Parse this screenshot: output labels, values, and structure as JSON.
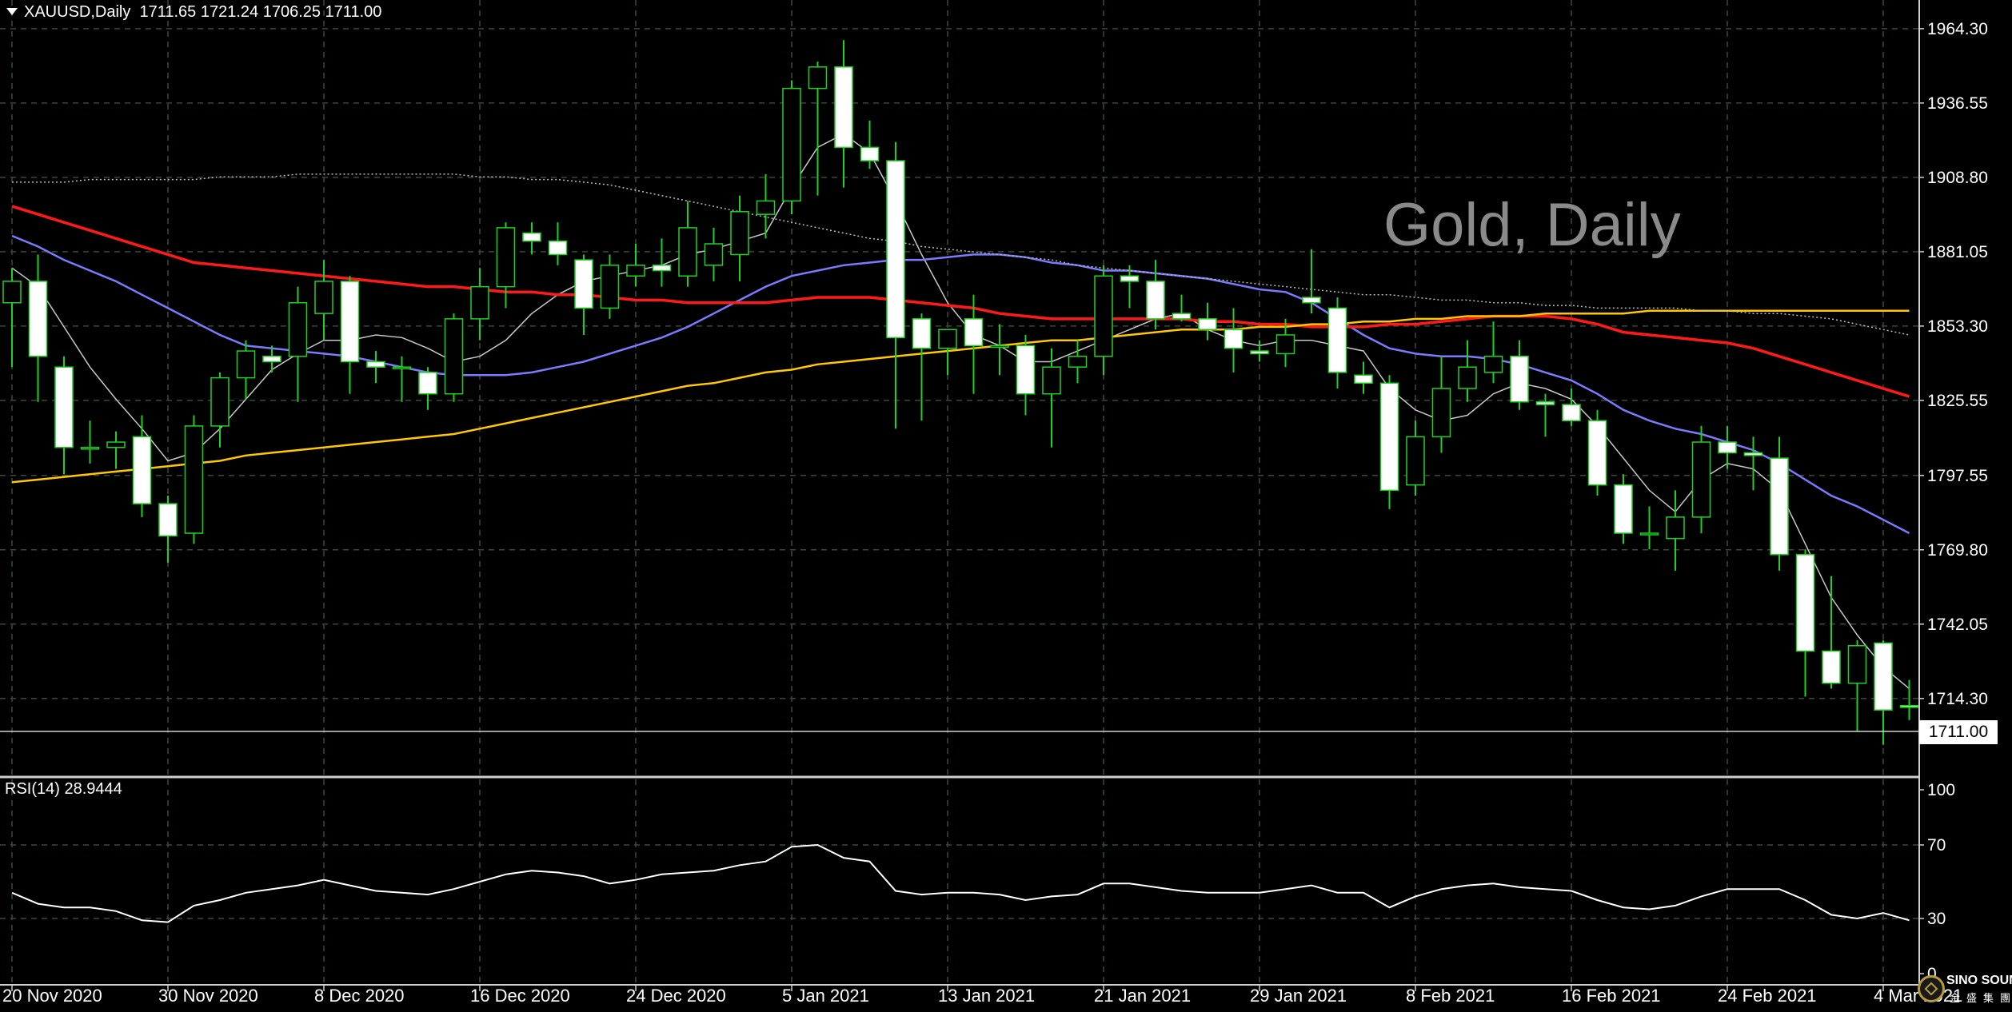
{
  "header": {
    "symbol": "XAUUSD,Daily",
    "ohlc": "1711.65 1721.24 1706.25 1711.00"
  },
  "watermark": "Gold, Daily",
  "current_price_label": "1711.00",
  "rsi_label": "RSI(14) 28.9444",
  "logo": {
    "line1": "SINO SOUND",
    "line2": "金盛集團"
  },
  "colors": {
    "background": "#000000",
    "grid": "#3a4a3a",
    "bull_body": "#000000",
    "bull_wick": "#1fd11f",
    "bear_body": "#ffffff",
    "bear_wick": "#1fd11f",
    "ma_fast": "#c8c8c8",
    "ma_blue": "#7b7bff",
    "ma_red": "#ff1a1a",
    "ma_yellow": "#ffc800",
    "ma_dotted": "#bbbbbb",
    "rsi_line": "#ffffff",
    "axis_text": "#ffffff"
  },
  "chart_data": {
    "type": "candlestick",
    "instrument": "XAUUSD",
    "timeframe": "Daily",
    "ylim": [
      1685,
      1975
    ],
    "y_ticks": [
      "1964.30",
      "1936.55",
      "1908.80",
      "1881.05",
      "1853.30",
      "1825.55",
      "1797.55",
      "1769.80",
      "1742.05",
      "1714.30"
    ],
    "x_tick_labels": [
      "20 Nov 2020",
      "30 Nov 2020",
      "8 Dec 2020",
      "16 Dec 2020",
      "24 Dec 2020",
      "5 Jan 2021",
      "13 Jan 2021",
      "21 Jan 2021",
      "29 Jan 2021",
      "8 Feb 2021",
      "16 Feb 2021",
      "24 Feb 2021",
      "4 Mar 2021"
    ],
    "x_tick_indices": [
      0,
      6,
      12,
      18,
      24,
      30,
      36,
      42,
      48,
      54,
      60,
      66,
      72
    ],
    "candles": [
      [
        1862,
        1875,
        1838,
        1870
      ],
      [
        1870,
        1880,
        1825,
        1842
      ],
      [
        1838,
        1842,
        1798,
        1808
      ],
      [
        1808,
        1818,
        1802,
        1808
      ],
      [
        1808,
        1814,
        1800,
        1810
      ],
      [
        1812,
        1820,
        1782,
        1787
      ],
      [
        1787,
        1790,
        1765,
        1775
      ],
      [
        1776,
        1820,
        1772,
        1816
      ],
      [
        1816,
        1836,
        1808,
        1834
      ],
      [
        1834,
        1848,
        1826,
        1844
      ],
      [
        1842,
        1846,
        1836,
        1840
      ],
      [
        1842,
        1868,
        1825,
        1862
      ],
      [
        1858,
        1878,
        1848,
        1870
      ],
      [
        1870,
        1872,
        1828,
        1840
      ],
      [
        1840,
        1844,
        1832,
        1838
      ],
      [
        1838,
        1842,
        1825,
        1838
      ],
      [
        1836,
        1838,
        1822,
        1828
      ],
      [
        1828,
        1858,
        1825,
        1856
      ],
      [
        1856,
        1875,
        1848,
        1868
      ],
      [
        1868,
        1892,
        1860,
        1890
      ],
      [
        1888,
        1892,
        1880,
        1885
      ],
      [
        1885,
        1892,
        1876,
        1880
      ],
      [
        1878,
        1880,
        1850,
        1860
      ],
      [
        1860,
        1880,
        1856,
        1876
      ],
      [
        1872,
        1884,
        1868,
        1876
      ],
      [
        1876,
        1886,
        1868,
        1874
      ],
      [
        1872,
        1900,
        1868,
        1890
      ],
      [
        1876,
        1890,
        1870,
        1884
      ],
      [
        1880,
        1902,
        1870,
        1896
      ],
      [
        1895,
        1910,
        1886,
        1900
      ],
      [
        1900,
        1945,
        1895,
        1942
      ],
      [
        1942,
        1952,
        1902,
        1950
      ],
      [
        1950,
        1960,
        1905,
        1920
      ],
      [
        1920,
        1930,
        1912,
        1915
      ],
      [
        1915,
        1922,
        1815,
        1849
      ],
      [
        1856,
        1858,
        1818,
        1845
      ],
      [
        1845,
        1852,
        1835,
        1852
      ],
      [
        1856,
        1865,
        1828,
        1846
      ],
      [
        1846,
        1854,
        1835,
        1846
      ],
      [
        1846,
        1850,
        1820,
        1828
      ],
      [
        1828,
        1845,
        1808,
        1838
      ],
      [
        1838,
        1848,
        1832,
        1842
      ],
      [
        1842,
        1876,
        1835,
        1872
      ],
      [
        1872,
        1876,
        1860,
        1870
      ],
      [
        1870,
        1878,
        1852,
        1856
      ],
      [
        1858,
        1865,
        1855,
        1856
      ],
      [
        1856,
        1862,
        1848,
        1852
      ],
      [
        1852,
        1860,
        1836,
        1845
      ],
      [
        1844,
        1848,
        1840,
        1843
      ],
      [
        1843,
        1856,
        1838,
        1850
      ],
      [
        1864,
        1882,
        1858,
        1862
      ],
      [
        1860,
        1864,
        1830,
        1836
      ],
      [
        1835,
        1840,
        1828,
        1832
      ],
      [
        1832,
        1835,
        1785,
        1792
      ],
      [
        1794,
        1818,
        1790,
        1812
      ],
      [
        1812,
        1842,
        1806,
        1830
      ],
      [
        1830,
        1848,
        1825,
        1838
      ],
      [
        1836,
        1855,
        1832,
        1842
      ],
      [
        1842,
        1848,
        1822,
        1825
      ],
      [
        1825,
        1828,
        1812,
        1824
      ],
      [
        1824,
        1830,
        1816,
        1818
      ],
      [
        1818,
        1822,
        1790,
        1794
      ],
      [
        1794,
        1798,
        1772,
        1776
      ],
      [
        1776,
        1786,
        1770,
        1776
      ],
      [
        1774,
        1792,
        1762,
        1782
      ],
      [
        1782,
        1816,
        1776,
        1810
      ],
      [
        1810,
        1816,
        1800,
        1806
      ],
      [
        1806,
        1812,
        1792,
        1805
      ],
      [
        1804,
        1812,
        1762,
        1768
      ],
      [
        1768,
        1770,
        1715,
        1732
      ],
      [
        1732,
        1760,
        1718,
        1720
      ],
      [
        1720,
        1736,
        1702,
        1734
      ],
      [
        1735,
        1736,
        1697,
        1710
      ],
      [
        1711.65,
        1721.24,
        1706.25,
        1711.0
      ]
    ],
    "series": [
      {
        "name": "",
        "values": [
          1875,
          1868,
          1853,
          1838,
          1826,
          1815,
          1803,
          1806,
          1815,
          1826,
          1837,
          1843,
          1848,
          1848,
          1850,
          1849,
          1845,
          1840,
          1842,
          1848,
          1858,
          1865,
          1870,
          1872,
          1874,
          1876,
          1880,
          1882,
          1885,
          1888,
          1905,
          1920,
          1925,
          1918,
          1900,
          1880,
          1862,
          1850,
          1846,
          1840,
          1840,
          1844,
          1848,
          1852,
          1856,
          1858,
          1852,
          1848,
          1846,
          1848,
          1848,
          1846,
          1844,
          1830,
          1822,
          1818,
          1820,
          1828,
          1832,
          1830,
          1826,
          1816,
          1804,
          1792,
          1784,
          1796,
          1802,
          1800,
          1792,
          1772,
          1752,
          1738,
          1726,
          1718
        ]
      },
      {
        "name": "",
        "values": [
          1887,
          1883,
          1878,
          1874,
          1870,
          1865,
          1860,
          1855,
          1850,
          1846,
          1845,
          1844,
          1843,
          1842,
          1840,
          1838,
          1836,
          1835,
          1835,
          1835,
          1836,
          1838,
          1840,
          1843,
          1846,
          1849,
          1853,
          1858,
          1863,
          1868,
          1872,
          1874,
          1876,
          1877,
          1878,
          1878,
          1879,
          1880,
          1880,
          1879,
          1877,
          1876,
          1874,
          1874,
          1873,
          1872,
          1871,
          1869,
          1867,
          1866,
          1862,
          1856,
          1850,
          1845,
          1843,
          1842,
          1842,
          1841,
          1839,
          1836,
          1833,
          1828,
          1822,
          1818,
          1815,
          1813,
          1810,
          1807,
          1802,
          1796,
          1790,
          1786,
          1781,
          1776
        ]
      },
      {
        "name": "",
        "values": [
          1898,
          1895,
          1892,
          1889,
          1886,
          1883,
          1880,
          1877,
          1876,
          1875,
          1874,
          1873,
          1872,
          1871,
          1870,
          1869,
          1868,
          1868,
          1867,
          1866,
          1866,
          1865,
          1865,
          1864,
          1863,
          1863,
          1862,
          1862,
          1862,
          1862,
          1863,
          1864,
          1864,
          1864,
          1863,
          1862,
          1861,
          1860,
          1858,
          1857,
          1856,
          1856,
          1856,
          1856,
          1856,
          1856,
          1855,
          1855,
          1854,
          1854,
          1853,
          1853,
          1853,
          1854,
          1854,
          1855,
          1856,
          1857,
          1857,
          1857,
          1856,
          1854,
          1851,
          1850,
          1849,
          1848,
          1847,
          1845,
          1842,
          1839,
          1836,
          1833,
          1830,
          1827
        ]
      },
      {
        "name": "",
        "values": [
          1795,
          1796,
          1797,
          1798,
          1799,
          1800,
          1801,
          1802,
          1803,
          1805,
          1806,
          1807,
          1808,
          1809,
          1810,
          1811,
          1812,
          1813,
          1815,
          1817,
          1819,
          1821,
          1823,
          1825,
          1827,
          1829,
          1831,
          1832,
          1834,
          1836,
          1837,
          1839,
          1840,
          1841,
          1842,
          1843,
          1844,
          1845,
          1846,
          1847,
          1848,
          1848,
          1849,
          1850,
          1851,
          1852,
          1852,
          1852,
          1853,
          1853,
          1854,
          1854,
          1855,
          1855,
          1856,
          1856,
          1857,
          1857,
          1857,
          1858,
          1858,
          1858,
          1858,
          1859,
          1859,
          1859,
          1859,
          1859,
          1859,
          1859,
          1859,
          1859,
          1859,
          1859
        ]
      },
      {
        "name": "",
        "values": [
          1907,
          1907,
          1907,
          1908,
          1908,
          1908,
          1908,
          1908,
          1909,
          1909,
          1909,
          1910,
          1910,
          1910,
          1910,
          1910,
          1910,
          1910,
          1909,
          1909,
          1908,
          1908,
          1907,
          1906,
          1904,
          1902,
          1900,
          1898,
          1896,
          1894,
          1892,
          1890,
          1888,
          1886,
          1885,
          1883,
          1882,
          1881,
          1880,
          1879,
          1878,
          1876,
          1875,
          1874,
          1873,
          1872,
          1871,
          1870,
          1869,
          1868,
          1867,
          1866,
          1865,
          1865,
          1864,
          1863,
          1863,
          1862,
          1862,
          1861,
          1861,
          1860,
          1860,
          1860,
          1860,
          1859,
          1859,
          1858,
          1858,
          1857,
          1856,
          1854,
          1852,
          1850
        ]
      }
    ],
    "rsi": {
      "name": "RSI(14)",
      "period": 14,
      "last": 28.9444,
      "ylim": [
        0,
        100
      ],
      "y_ticks": [
        "100",
        "70",
        "30",
        "0"
      ],
      "values": [
        44,
        38,
        36,
        36,
        34,
        29,
        28,
        37,
        40,
        44,
        46,
        48,
        51,
        48,
        45,
        44,
        43,
        46,
        50,
        54,
        56,
        55,
        53,
        49,
        51,
        54,
        55,
        56,
        59,
        61,
        69,
        70,
        63,
        61,
        45,
        43,
        44,
        44,
        43,
        40,
        42,
        43,
        49,
        49,
        47,
        45,
        44,
        44,
        44,
        46,
        48,
        44,
        44,
        36,
        42,
        46,
        48,
        49,
        47,
        46,
        45,
        40,
        36,
        35,
        37,
        42,
        46,
        46,
        46,
        40,
        32,
        30,
        33,
        29
      ]
    }
  }
}
